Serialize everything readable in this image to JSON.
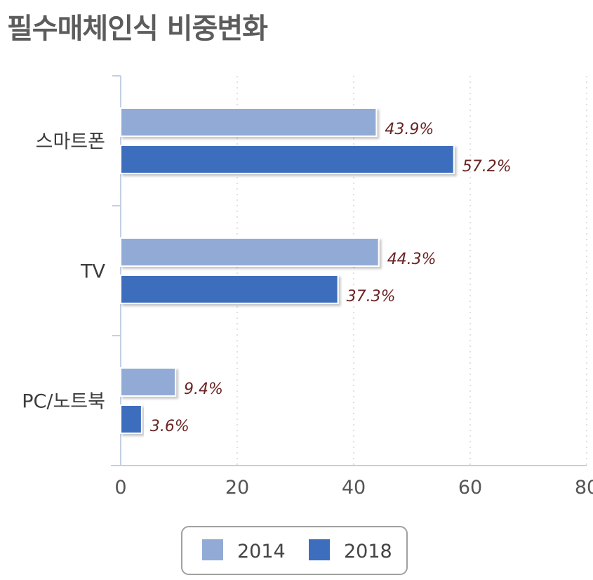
{
  "title": "필수매체인식 비중변화",
  "chart_data": {
    "type": "bar",
    "orientation": "horizontal",
    "title": "필수매체인식 비중변화",
    "categories": [
      "스마트폰",
      "TV",
      "PC/노트북"
    ],
    "series": [
      {
        "name": "2014",
        "values": [
          43.9,
          44.3,
          9.4
        ],
        "labels": [
          "43.9%",
          "44.3%",
          "9.4%"
        ],
        "color": "#92abd6"
      },
      {
        "name": "2018",
        "values": [
          57.2,
          37.3,
          3.6
        ],
        "labels": [
          "57.2%",
          "37.3%",
          "3.6%"
        ],
        "color": "#3d6ebd"
      }
    ],
    "xlim": [
      0,
      80
    ],
    "xticks": [
      0,
      20,
      40,
      60,
      80
    ],
    "xlabel": "",
    "ylabel": "",
    "grid": true,
    "legend_position": "bottom"
  }
}
